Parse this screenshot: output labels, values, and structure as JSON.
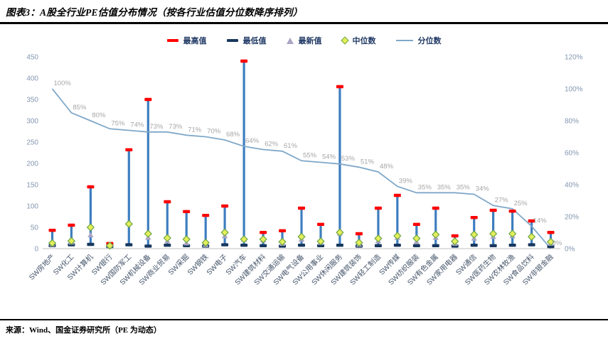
{
  "header": {
    "title": "图表3：A股全行业PE估值分布情况（按各行业估值分位数降序排列）"
  },
  "legend": {
    "items": [
      {
        "key": "max",
        "label": "最高值"
      },
      {
        "key": "min",
        "label": "最低值"
      },
      {
        "key": "latest",
        "label": "最新值"
      },
      {
        "key": "median",
        "label": "中位数"
      },
      {
        "key": "pct",
        "label": "分位数"
      }
    ]
  },
  "chart_data": {
    "type": "hilo-bar-with-line",
    "title": "A股全行业PE估值分布情况",
    "categories": [
      "SW房地产",
      "SW化工",
      "SW计算机",
      "SW银行",
      "SW国防军工",
      "SW机械设备",
      "SW商业贸易",
      "SW采掘",
      "SW钢铁",
      "SW电子",
      "SW汽车",
      "SW建筑材料",
      "SW交通运输",
      "SW电气设备",
      "SW公用事业",
      "SW休闲服务",
      "SW建筑装饰",
      "SW轻工制造",
      "SW传媒",
      "SW纺织服装",
      "SW有色金属",
      "SW家用电器",
      "SW通信",
      "SW医药生物",
      "SW农林牧渔",
      "SW食品饮料",
      "SW非银金融"
    ],
    "series": [
      {
        "name": "最高值",
        "role": "max",
        "axis": "left",
        "values": [
          43,
          55,
          145,
          12,
          232,
          350,
          110,
          87,
          78,
          100,
          440,
          38,
          42,
          95,
          57,
          380,
          35,
          95,
          125,
          57,
          95,
          30,
          73,
          90,
          88,
          65,
          38
        ]
      },
      {
        "name": "最低值",
        "role": "min",
        "axis": "left",
        "values": [
          7,
          9,
          10,
          5,
          9,
          6,
          8,
          7,
          6,
          9,
          8,
          7,
          6,
          8,
          7,
          8,
          6,
          7,
          8,
          7,
          7,
          6,
          8,
          7,
          8,
          9,
          5
        ]
      },
      {
        "name": "最新值",
        "role": "latest",
        "axis": "left",
        "values": [
          10,
          15,
          32,
          6,
          60,
          26,
          18,
          13,
          9,
          30,
          22,
          20,
          12,
          22,
          14,
          36,
          10,
          18,
          26,
          16,
          26,
          12,
          24,
          28,
          30,
          30,
          12
        ]
      },
      {
        "name": "中位数",
        "role": "median",
        "axis": "left",
        "values": [
          13,
          18,
          50,
          7,
          58,
          35,
          25,
          22,
          14,
          38,
          22,
          22,
          16,
          28,
          17,
          38,
          14,
          24,
          30,
          24,
          33,
          17,
          33,
          35,
          35,
          28,
          16
        ]
      },
      {
        "name": "分位数",
        "role": "percentile",
        "axis": "right",
        "values": [
          100,
          85,
          80,
          75,
          74,
          73,
          73,
          71,
          70,
          68,
          64,
          62,
          61,
          55,
          54,
          53,
          51,
          48,
          39,
          35,
          35,
          35,
          34,
          27,
          25,
          14,
          0
        ],
        "labels": [
          "100%",
          "85%",
          "80%",
          "75%",
          "74%",
          "73%",
          "73%",
          "71%",
          "70%",
          "68%",
          "64%",
          "62%",
          "61%",
          "55%",
          "54%",
          "53%",
          "51%",
          "48%",
          "39%",
          "35%",
          "35%",
          "35%",
          "34%",
          "27%",
          "25%",
          "14%",
          "0%"
        ]
      }
    ],
    "left_axis": {
      "min": 0,
      "max": 450,
      "step": 50
    },
    "right_axis": {
      "min": 0,
      "max": 120,
      "step": 20,
      "suffix": "%"
    },
    "grid": false,
    "legend_position": "top",
    "colors": {
      "max": "#FF0000",
      "min": "#17375E",
      "latest": "#ABA4C4",
      "median_fill": "#E4EF5A",
      "median_stroke": "#6DA544",
      "hilo": "#3E7EC0",
      "line": "#7FA8C9",
      "tick": "#8496B0",
      "pct_label": "#A6A6A6",
      "x_label": "#44546A",
      "baseline": "#BFBFBF"
    }
  },
  "footer": {
    "source": "来源：Wind、国金证券研究所（PE 为动态）"
  }
}
